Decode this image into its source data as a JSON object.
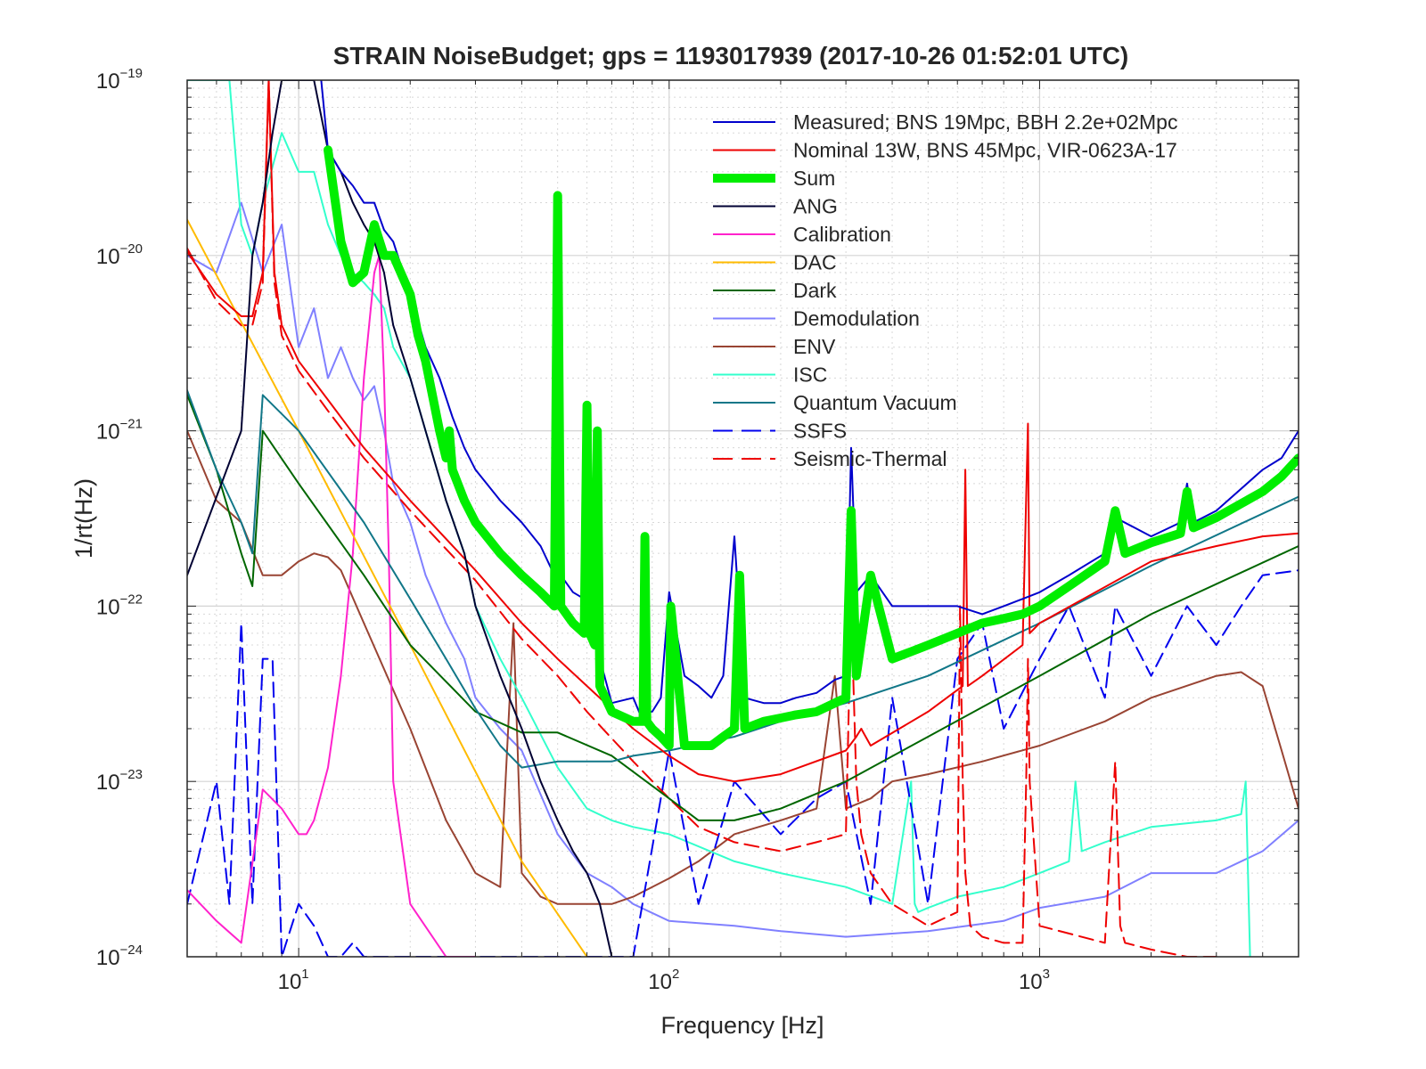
{
  "chart_data": {
    "type": "line",
    "title": "STRAIN NoiseBudget; gps = 1193017939 (2017-10-26 01:52:01 UTC)",
    "xlabel": "Frequency [Hz]",
    "ylabel": "1/rt(Hz)",
    "xscale": "log",
    "yscale": "log",
    "xlim": [
      5,
      5000
    ],
    "ylim": [
      1e-24,
      1e-19
    ],
    "grid": true,
    "legend_position": "top-right",
    "xticks": [
      {
        "base": "10",
        "exp": "1",
        "value": 10
      },
      {
        "base": "10",
        "exp": "2",
        "value": 100
      },
      {
        "base": "10",
        "exp": "3",
        "value": 1000
      }
    ],
    "yticks": [
      {
        "base": "10",
        "exp": "−19",
        "value": 1e-19
      },
      {
        "base": "10",
        "exp": "−20",
        "value": 1e-20
      },
      {
        "base": "10",
        "exp": "−21",
        "value": 1e-21
      },
      {
        "base": "10",
        "exp": "−22",
        "value": 1e-22
      },
      {
        "base": "10",
        "exp": "−23",
        "value": 1e-23
      },
      {
        "base": "10",
        "exp": "−24",
        "value": 1e-24
      }
    ],
    "series": [
      {
        "name": "Measured; BNS 19Mpc, BBH 2.2e+02Mpc",
        "color": "#0000cc",
        "width": 2,
        "dash": "",
        "x": [
          11.5,
          12,
          13,
          14,
          15,
          16,
          17,
          18,
          20,
          22,
          24,
          26,
          28,
          30,
          35,
          40,
          45,
          49,
          50,
          51,
          55,
          59,
          60,
          61,
          65,
          70,
          80,
          85,
          86,
          87,
          90,
          95,
          100,
          110,
          120,
          130,
          140,
          150,
          160,
          180,
          200,
          220,
          250,
          280,
          300,
          310,
          320,
          350,
          400,
          450,
          500,
          600,
          700,
          800,
          900,
          1000,
          1200,
          1500,
          1600,
          2000,
          2400,
          2500,
          2600,
          3000,
          4000,
          4500,
          5000
        ],
        "y": [
          1e-19,
          4e-20,
          3e-20,
          2.5e-20,
          2e-20,
          2e-20,
          1.4e-20,
          1.2e-20,
          6e-21,
          3e-21,
          2e-21,
          1.2e-21,
          8e-22,
          6e-22,
          4e-22,
          3e-22,
          2.2e-22,
          1.5e-22,
          2.5e-21,
          1.5e-22,
          1.2e-22,
          1.1e-22,
          1.4e-21,
          1.2e-22,
          5e-23,
          2.8e-23,
          3e-23,
          2.2e-23,
          2.5e-22,
          2.5e-23,
          2.5e-23,
          3e-23,
          1.2e-22,
          4e-23,
          3.5e-23,
          3e-23,
          4e-23,
          2.5e-22,
          3e-23,
          2.8e-23,
          2.8e-23,
          3e-23,
          3.2e-23,
          3.8e-23,
          4e-23,
          8e-22,
          1.2e-22,
          1.5e-22,
          1e-22,
          1e-22,
          1e-22,
          1e-22,
          9e-23,
          1e-22,
          1.1e-22,
          1.2e-22,
          1.5e-22,
          2e-22,
          3.2e-22,
          2.5e-22,
          3e-22,
          5e-22,
          3e-22,
          3.5e-22,
          6e-22,
          7e-22,
          1e-21
        ]
      },
      {
        "name": "Nominal 13W, BNS 45Mpc, VIR-0623A-17",
        "color": "#ee0000",
        "width": 2,
        "dash": "",
        "x": [
          5,
          6,
          7,
          7.5,
          8,
          8.3,
          8.6,
          9,
          10,
          12,
          15,
          20,
          30,
          40,
          50,
          60,
          80,
          100,
          120,
          150,
          200,
          300,
          320,
          330,
          350,
          500,
          620,
          630,
          640,
          700,
          900,
          930,
          940,
          1000,
          2000,
          3000,
          4000,
          5000
        ],
        "y": [
          1.05e-20,
          6e-21,
          4.5e-21,
          4.5e-21,
          8e-21,
          1e-19,
          8e-21,
          4e-21,
          2.5e-21,
          1.5e-21,
          8e-22,
          4e-22,
          1.6e-22,
          8e-23,
          5e-23,
          3.5e-23,
          2e-23,
          1.4e-23,
          1.1e-23,
          1e-23,
          1.1e-23,
          1.5e-23,
          1.8e-23,
          2e-23,
          1.6e-23,
          2.5e-23,
          3.5e-23,
          6e-22,
          3.5e-23,
          4e-23,
          6e-23,
          1.1e-21,
          7e-23,
          8e-23,
          1.8e-22,
          2.2e-22,
          2.5e-22,
          2.6e-22
        ]
      },
      {
        "name": "Sum",
        "color": "#00ee00",
        "width": 10,
        "dash": "",
        "x": [
          12,
          13,
          14,
          15,
          16,
          17,
          18,
          20,
          21,
          22,
          24,
          25,
          25.5,
          26,
          28,
          30,
          35,
          40,
          45,
          49,
          50,
          51,
          55,
          59,
          60,
          61,
          63,
          64,
          65,
          70,
          80,
          85,
          86,
          87,
          90,
          95,
          100,
          101,
          110,
          120,
          130,
          140,
          150,
          155,
          160,
          180,
          200,
          220,
          250,
          280,
          300,
          310,
          320,
          350,
          400,
          450,
          500,
          600,
          700,
          800,
          900,
          1000,
          1200,
          1500,
          1600,
          1700,
          2000,
          2400,
          2500,
          2600,
          3000,
          4000,
          4500,
          5000
        ],
        "y": [
          4e-20,
          1.2e-20,
          7e-21,
          8e-21,
          1.5e-20,
          1e-20,
          1e-20,
          6e-21,
          3.5e-21,
          2.5e-21,
          1e-21,
          7e-22,
          1e-21,
          6e-22,
          4e-22,
          3e-22,
          2e-22,
          1.5e-22,
          1.2e-22,
          1e-22,
          2.2e-20,
          1e-22,
          8e-23,
          7e-23,
          1.4e-21,
          7e-23,
          6e-23,
          1e-21,
          3.5e-23,
          2.5e-23,
          2.2e-23,
          2.2e-23,
          2.5e-22,
          2.2e-23,
          2e-23,
          1.8e-23,
          1.6e-23,
          1e-22,
          1.6e-23,
          1.6e-23,
          1.6e-23,
          1.8e-23,
          2e-23,
          1.5e-22,
          2e-23,
          2.2e-23,
          2.3e-23,
          2.4e-23,
          2.5e-23,
          2.8e-23,
          3e-23,
          3.5e-22,
          4e-23,
          1.5e-22,
          5e-23,
          5.5e-23,
          6e-23,
          7e-23,
          8e-23,
          8.5e-23,
          9e-23,
          1e-22,
          1.3e-22,
          1.8e-22,
          3.5e-22,
          2e-22,
          2.3e-22,
          2.6e-22,
          4.5e-22,
          2.8e-22,
          3.2e-22,
          4.5e-22,
          5.5e-22,
          7e-22
        ]
      },
      {
        "name": "ANG",
        "color": "#000033",
        "width": 2,
        "dash": "",
        "x": [
          5,
          7,
          7.5,
          8,
          8.5,
          9,
          10,
          11,
          12,
          13,
          14,
          15,
          16,
          17,
          18,
          20,
          22,
          25,
          28,
          30,
          35,
          40,
          45,
          50,
          55,
          60,
          65,
          70
        ],
        "y": [
          1.5e-22,
          1e-21,
          1e-20,
          2e-20,
          5e-20,
          1e-19,
          1e-19,
          1e-19,
          4e-20,
          3e-20,
          2e-20,
          1.5e-20,
          1.2e-20,
          8e-21,
          4e-21,
          2e-21,
          1e-21,
          4e-22,
          2e-22,
          1e-22,
          4e-23,
          2e-23,
          1e-23,
          6e-24,
          4e-24,
          3e-24,
          2e-24,
          1e-24
        ]
      },
      {
        "name": "Calibration",
        "color": "#ff22cc",
        "width": 2,
        "dash": "",
        "x": [
          5,
          6,
          7,
          8,
          9,
          10,
          10.5,
          11,
          12,
          13,
          14,
          15,
          16,
          16.5,
          17,
          17.5,
          18,
          20,
          25,
          30
        ],
        "y": [
          2.4e-24,
          1.6e-24,
          1.2e-24,
          9e-24,
          7e-24,
          5e-24,
          5e-24,
          6e-24,
          1.2e-23,
          4e-23,
          2e-22,
          2e-21,
          8e-21,
          1e-20,
          2e-21,
          2e-22,
          1e-23,
          2e-24,
          1e-24,
          1e-24
        ]
      },
      {
        "name": "DAC",
        "color": "#ffbb00",
        "width": 2,
        "dash": "",
        "x": [
          5,
          10,
          20,
          40,
          60
        ],
        "y": [
          1.6e-20,
          1e-21,
          6e-23,
          3.5e-24,
          1e-24
        ]
      },
      {
        "name": "Dark",
        "color": "#006600",
        "width": 2,
        "dash": "",
        "x": [
          5,
          6,
          7,
          7.5,
          8,
          10,
          15,
          20,
          30,
          40,
          50,
          70,
          100,
          120,
          150,
          200,
          300,
          500,
          1000,
          2000,
          5000
        ],
        "y": [
          1.6e-21,
          6e-22,
          2e-22,
          1.3e-22,
          1e-21,
          5e-22,
          1.5e-22,
          6e-23,
          2.5e-23,
          1.9e-23,
          1.9e-23,
          1.4e-23,
          8e-24,
          6e-24,
          6e-24,
          7e-24,
          1e-23,
          1.8e-23,
          4e-23,
          9e-23,
          2.2e-22
        ]
      },
      {
        "name": "Demodulation",
        "color": "#8080ff",
        "width": 2,
        "dash": "",
        "x": [
          5,
          6,
          7,
          8,
          9,
          10,
          11,
          12,
          13,
          14,
          15,
          16,
          17,
          18,
          20,
          22,
          25,
          28,
          30,
          35,
          40,
          50,
          60,
          70,
          80,
          100,
          150,
          200,
          300,
          500,
          800,
          1000,
          1500,
          2000,
          3000,
          4000,
          5000
        ],
        "y": [
          1e-20,
          8e-21,
          2e-20,
          8e-21,
          1.5e-20,
          3e-21,
          5e-21,
          2e-21,
          3e-21,
          2e-21,
          1.5e-21,
          1.8e-21,
          1e-21,
          5e-22,
          3e-22,
          1.5e-22,
          8e-23,
          5e-23,
          3e-23,
          2e-23,
          1.5e-23,
          5e-24,
          3e-24,
          2.5e-24,
          2e-24,
          1.6e-24,
          1.5e-24,
          1.4e-24,
          1.3e-24,
          1.4e-24,
          1.6e-24,
          1.9e-24,
          2.2e-24,
          3e-24,
          3e-24,
          4e-24,
          6e-24
        ]
      },
      {
        "name": "ENV",
        "color": "#994433",
        "width": 2,
        "dash": "",
        "x": [
          5,
          6,
          7,
          8,
          9,
          10,
          11,
          12,
          13,
          15,
          20,
          25,
          30,
          35,
          38,
          40,
          45,
          50,
          60,
          70,
          80,
          100,
          120,
          150,
          200,
          250,
          280,
          300,
          350,
          400,
          500,
          700,
          1000,
          1500,
          2000,
          3000,
          3500,
          4000,
          4500,
          5000
        ],
        "y": [
          1e-21,
          4e-22,
          3e-22,
          1.5e-22,
          1.5e-22,
          1.8e-22,
          2e-22,
          1.9e-22,
          1.6e-22,
          8e-23,
          2e-23,
          6e-24,
          3e-24,
          2.5e-24,
          8e-23,
          3e-24,
          2.2e-24,
          2e-24,
          2e-24,
          2e-24,
          2.2e-24,
          2.8e-24,
          3.5e-24,
          5e-24,
          6e-24,
          7e-24,
          4e-23,
          7e-24,
          8e-24,
          1e-23,
          1.1e-23,
          1.3e-23,
          1.6e-23,
          2.2e-23,
          3e-23,
          4e-23,
          4.2e-23,
          3.5e-23,
          1.5e-23,
          7e-24
        ]
      },
      {
        "name": "ISC",
        "color": "#33ffcc",
        "width": 2,
        "dash": "",
        "x": [
          5,
          6,
          6.5,
          7,
          7.5,
          8,
          9,
          10,
          11,
          12,
          13,
          14,
          15,
          16,
          17,
          18,
          20,
          22,
          25,
          28,
          30,
          35,
          40,
          50,
          60,
          70,
          80,
          100,
          150,
          200,
          300,
          400,
          450,
          460,
          470,
          500,
          600,
          800,
          1000,
          1200,
          1250,
          1300,
          1500,
          2000,
          3000,
          3500,
          3600,
          3700
        ],
        "y": [
          1e-19,
          1e-19,
          1e-19,
          1.5e-20,
          1e-20,
          2e-20,
          5e-20,
          3e-20,
          3e-20,
          1.5e-20,
          1e-20,
          8e-21,
          7e-21,
          6e-21,
          5e-21,
          3e-21,
          2e-21,
          1e-21,
          4e-22,
          2e-22,
          1e-22,
          5e-23,
          3e-23,
          1.2e-23,
          7e-24,
          6e-24,
          5.5e-24,
          5e-24,
          3.5e-24,
          3e-24,
          2.5e-24,
          2e-24,
          1e-23,
          2e-24,
          1.8e-24,
          1.9e-24,
          2.2e-24,
          2.5e-24,
          3e-24,
          3.5e-24,
          1e-23,
          4e-24,
          4.5e-24,
          5.5e-24,
          6e-24,
          6.5e-24,
          1e-23,
          1e-24
        ]
      },
      {
        "name": "Quantum Vacuum",
        "color": "#117788",
        "width": 2,
        "dash": "",
        "x": [
          5,
          6,
          7,
          7.5,
          8,
          10,
          15,
          20,
          25,
          30,
          35,
          40,
          50,
          60,
          70,
          80,
          100,
          150,
          200,
          300,
          500,
          1000,
          2000,
          5000
        ],
        "y": [
          1.7e-21,
          6e-22,
          3e-22,
          2e-22,
          1.6e-21,
          1e-21,
          3e-22,
          1.1e-22,
          5e-23,
          2.6e-23,
          1.6e-23,
          1.2e-23,
          1.3e-23,
          1.3e-23,
          1.3e-23,
          1.4e-23,
          1.5e-23,
          1.8e-23,
          2.2e-23,
          2.8e-23,
          4e-23,
          8e-23,
          1.7e-22,
          4.2e-22
        ]
      },
      {
        "name": "SSFS",
        "color": "#0000ee",
        "width": 2,
        "dash": "16,8",
        "x": [
          5,
          6,
          6.5,
          7,
          7.5,
          8,
          8.5,
          9,
          10,
          11,
          12,
          13,
          14,
          15,
          16,
          18,
          20,
          25,
          30,
          40,
          50,
          60,
          70,
          80,
          100,
          120,
          150,
          200,
          250,
          300,
          350,
          400,
          500,
          600,
          700,
          800,
          1000,
          1200,
          1500,
          1600,
          2000,
          2500,
          3000,
          3500,
          4000,
          5000
        ],
        "y": [
          2e-24,
          1e-23,
          2e-24,
          8e-23,
          2e-24,
          5e-23,
          5e-23,
          1e-24,
          2e-24,
          1.5e-24,
          1e-24,
          1e-24,
          1.2e-24,
          1e-24,
          1e-24,
          1e-24,
          1e-24,
          1e-24,
          1e-24,
          1e-24,
          1e-24,
          1e-24,
          1e-24,
          1e-24,
          1.5e-23,
          2e-24,
          1e-23,
          5e-24,
          8e-24,
          1e-23,
          2e-24,
          3e-23,
          2e-24,
          5e-23,
          8e-23,
          2e-23,
          5e-23,
          1e-22,
          3e-23,
          1e-22,
          4e-23,
          1e-22,
          6e-23,
          1e-22,
          1.5e-22,
          1.6e-22
        ]
      },
      {
        "name": "Seismic-Thermal",
        "color": "#ee0000",
        "width": 2,
        "dash": "16,8",
        "x": [
          5,
          6,
          7,
          7.5,
          8,
          8.3,
          8.6,
          9,
          10,
          12,
          15,
          20,
          30,
          40,
          50,
          60,
          80,
          100,
          120,
          150,
          200,
          250,
          300,
          310,
          320,
          330,
          350,
          400,
          500,
          600,
          610,
          620,
          630,
          650,
          700,
          800,
          900,
          920,
          930,
          940,
          1000,
          1500,
          1600,
          1650,
          1700,
          2000,
          2500,
          3000
        ],
        "y": [
          1.1e-20,
          5.5e-21,
          4e-21,
          4e-21,
          7e-21,
          1e-19,
          7e-21,
          3.5e-21,
          2.2e-21,
          1.3e-21,
          7e-22,
          3.5e-22,
          1.4e-22,
          6.5e-23,
          4e-23,
          2.5e-23,
          1.3e-23,
          8e-24,
          5.5e-24,
          4.5e-24,
          4e-24,
          4.5e-24,
          5e-24,
          1e-22,
          1e-23,
          5e-24,
          3e-24,
          2e-24,
          1.5e-24,
          1.8e-24,
          1e-22,
          1e-23,
          3e-24,
          1.5e-24,
          1.3e-24,
          1.2e-24,
          1.2e-24,
          1e-23,
          5e-23,
          1e-23,
          1.5e-24,
          1.2e-24,
          1.3e-23,
          1.5e-24,
          1.2e-24,
          1.1e-24,
          1e-24,
          1e-24
        ]
      }
    ]
  }
}
